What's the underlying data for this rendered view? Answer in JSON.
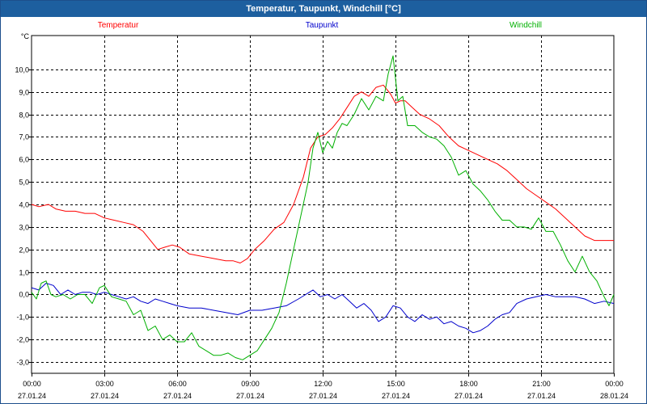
{
  "window": {
    "title": "Temperatur, Taupunkt, Windchill [°C]"
  },
  "colors": {
    "temperature": "#ff0000",
    "dewpoint": "#0000cc",
    "windchill": "#00b000",
    "grid": "#000000",
    "titlebar": "#1d5f9f"
  },
  "chart_data": {
    "type": "line",
    "title": "Temperatur, Taupunkt, Windchill [°C]",
    "ylabel": "°C",
    "ylim": [
      -3.5,
      11.5
    ],
    "y_ticks": [
      -3.0,
      -2.0,
      -1.0,
      0.0,
      1.0,
      2.0,
      3.0,
      4.0,
      5.0,
      6.0,
      7.0,
      8.0,
      9.0,
      10.0
    ],
    "y_tick_labels": [
      "-3,0",
      "-2,0",
      "-1,0",
      "0,0",
      "1,0",
      "2,0",
      "3,0",
      "4,0",
      "5,0",
      "6,0",
      "7,0",
      "8,0",
      "9,0",
      "10,0"
    ],
    "xlim_hours": [
      0,
      24
    ],
    "x_tick_hours": [
      0,
      3,
      6,
      9,
      12,
      15,
      18,
      21,
      24
    ],
    "x_ticks": [
      {
        "time": "00:00",
        "date": "27.01.24"
      },
      {
        "time": "03:00",
        "date": "27.01.24"
      },
      {
        "time": "06:00",
        "date": "27.01.24"
      },
      {
        "time": "09:00",
        "date": "27.01.24"
      },
      {
        "time": "12:00",
        "date": "27.01.24"
      },
      {
        "time": "15:00",
        "date": "27.01.24"
      },
      {
        "time": "18:00",
        "date": "27.01.24"
      },
      {
        "time": "21:00",
        "date": "27.01.24"
      },
      {
        "time": "00:00",
        "date": "28.01.24"
      }
    ],
    "grid": true,
    "legend_position": "top",
    "series": [
      {
        "name": "Temperatur",
        "color": "#ff0000",
        "x": [
          0,
          0.3,
          0.7,
          1.0,
          1.4,
          1.8,
          2.2,
          2.6,
          3.0,
          3.4,
          3.8,
          4.2,
          4.6,
          4.9,
          5.2,
          5.5,
          5.8,
          6.1,
          6.5,
          7.0,
          7.5,
          8.0,
          8.3,
          8.6,
          8.9,
          9.2,
          9.6,
          10.0,
          10.4,
          10.8,
          11.2,
          11.5,
          11.8,
          12.1,
          12.4,
          12.7,
          13.0,
          13.3,
          13.6,
          13.9,
          14.2,
          14.5,
          14.8,
          15.0,
          15.2,
          15.4,
          15.7,
          16.0,
          16.4,
          16.8,
          17.2,
          17.6,
          18.0,
          18.4,
          18.8,
          19.2,
          19.6,
          20.0,
          20.4,
          20.8,
          21.2,
          21.6,
          22.0,
          22.4,
          22.8,
          23.2,
          23.6,
          24.0
        ],
        "y": [
          4.0,
          3.9,
          4.0,
          3.8,
          3.7,
          3.7,
          3.6,
          3.6,
          3.4,
          3.3,
          3.2,
          3.1,
          2.8,
          2.4,
          2.0,
          2.1,
          2.2,
          2.1,
          1.8,
          1.7,
          1.6,
          1.5,
          1.5,
          1.4,
          1.6,
          2.0,
          2.4,
          2.9,
          3.2,
          4.0,
          5.2,
          6.5,
          7.0,
          7.1,
          7.4,
          7.8,
          8.3,
          8.8,
          9.0,
          8.8,
          9.2,
          9.3,
          8.9,
          8.5,
          8.6,
          8.6,
          8.3,
          8.0,
          7.8,
          7.5,
          7.0,
          6.6,
          6.4,
          6.2,
          6.0,
          5.8,
          5.5,
          5.1,
          4.7,
          4.4,
          4.1,
          3.8,
          3.4,
          3.0,
          2.6,
          2.4,
          2.4,
          2.4
        ]
      },
      {
        "name": "Taupunkt",
        "color": "#0000cc",
        "x": [
          0,
          0.3,
          0.6,
          0.9,
          1.2,
          1.5,
          1.8,
          2.1,
          2.4,
          2.7,
          3.0,
          3.3,
          3.6,
          3.9,
          4.2,
          4.5,
          4.8,
          5.1,
          5.4,
          5.7,
          6.0,
          6.5,
          7.0,
          7.5,
          8.0,
          8.5,
          9.0,
          9.5,
          10.0,
          10.5,
          11.0,
          11.3,
          11.6,
          11.9,
          12.2,
          12.5,
          12.8,
          13.1,
          13.4,
          13.7,
          14.0,
          14.3,
          14.6,
          14.9,
          15.2,
          15.5,
          15.8,
          16.1,
          16.4,
          16.7,
          17.0,
          17.3,
          17.6,
          17.9,
          18.2,
          18.5,
          18.8,
          19.1,
          19.4,
          19.7,
          20.0,
          20.4,
          20.8,
          21.2,
          21.6,
          22.0,
          22.4,
          22.8,
          23.2,
          23.6,
          24.0
        ],
        "y": [
          0.3,
          0.2,
          0.5,
          0.4,
          0.0,
          0.2,
          0.0,
          0.1,
          0.1,
          0.0,
          0.1,
          0.0,
          -0.1,
          -0.2,
          -0.1,
          -0.3,
          -0.4,
          -0.2,
          -0.3,
          -0.4,
          -0.5,
          -0.6,
          -0.6,
          -0.7,
          -0.8,
          -0.9,
          -0.7,
          -0.7,
          -0.6,
          -0.5,
          -0.2,
          0.0,
          0.2,
          -0.1,
          0.0,
          -0.2,
          0.0,
          -0.3,
          -0.6,
          -0.4,
          -0.7,
          -1.2,
          -1.0,
          -0.5,
          -0.6,
          -1.0,
          -1.2,
          -0.9,
          -1.1,
          -1.0,
          -1.3,
          -1.2,
          -1.4,
          -1.5,
          -1.7,
          -1.6,
          -1.4,
          -1.1,
          -0.9,
          -0.8,
          -0.4,
          -0.2,
          -0.1,
          0.0,
          -0.1,
          -0.1,
          -0.1,
          -0.2,
          -0.4,
          -0.3,
          -0.4
        ]
      },
      {
        "name": "Windchill",
        "color": "#00b000",
        "x": [
          0,
          0.2,
          0.4,
          0.6,
          0.8,
          1.0,
          1.3,
          1.6,
          1.9,
          2.2,
          2.5,
          2.8,
          3.0,
          3.3,
          3.6,
          3.9,
          4.2,
          4.5,
          4.8,
          5.1,
          5.4,
          5.7,
          6.0,
          6.3,
          6.6,
          6.9,
          7.2,
          7.5,
          7.8,
          8.1,
          8.4,
          8.7,
          9.0,
          9.3,
          9.6,
          9.9,
          10.2,
          10.5,
          10.8,
          11.1,
          11.4,
          11.6,
          11.8,
          12.0,
          12.2,
          12.4,
          12.6,
          12.8,
          13.0,
          13.3,
          13.6,
          13.9,
          14.2,
          14.5,
          14.7,
          14.9,
          15.1,
          15.3,
          15.5,
          15.8,
          16.1,
          16.4,
          16.7,
          17.0,
          17.3,
          17.6,
          17.9,
          18.2,
          18.5,
          18.8,
          19.1,
          19.4,
          19.7,
          20.0,
          20.3,
          20.6,
          20.9,
          21.2,
          21.5,
          21.8,
          22.1,
          22.4,
          22.7,
          23.0,
          23.3,
          23.6,
          23.8,
          24.0
        ],
        "y": [
          0.1,
          -0.2,
          0.5,
          0.6,
          0.0,
          -0.1,
          0.0,
          -0.2,
          0.0,
          0.0,
          -0.4,
          0.3,
          0.4,
          -0.1,
          -0.2,
          -0.3,
          -0.9,
          -0.7,
          -1.6,
          -1.4,
          -2.0,
          -1.8,
          -2.1,
          -2.1,
          -1.7,
          -2.3,
          -2.5,
          -2.7,
          -2.7,
          -2.6,
          -2.8,
          -2.9,
          -2.7,
          -2.5,
          -2.0,
          -1.5,
          -0.8,
          0.5,
          2.0,
          3.5,
          5.0,
          6.5,
          7.2,
          6.3,
          6.8,
          6.5,
          7.2,
          7.6,
          7.5,
          8.0,
          8.7,
          8.2,
          8.8,
          8.6,
          9.8,
          10.6,
          8.6,
          8.8,
          7.5,
          7.5,
          7.2,
          7.0,
          6.9,
          6.6,
          6.1,
          5.3,
          5.5,
          4.9,
          4.6,
          4.2,
          3.7,
          3.3,
          3.3,
          3.0,
          3.0,
          2.9,
          3.4,
          2.8,
          2.8,
          2.2,
          1.5,
          1.0,
          1.7,
          1.0,
          0.6,
          -0.1,
          -0.5,
          0.0
        ]
      }
    ]
  }
}
